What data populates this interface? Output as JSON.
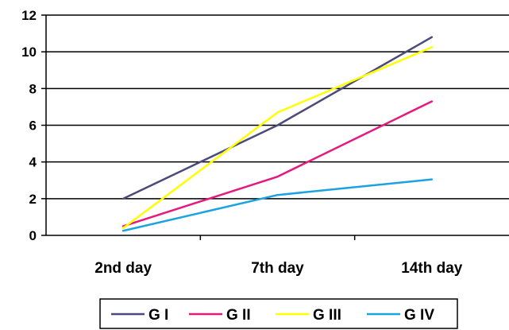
{
  "chart_data": {
    "type": "line",
    "categories": [
      "2nd day",
      "7th day",
      "14th day"
    ],
    "ylim": [
      0,
      12
    ],
    "yticks": [
      0,
      2,
      4,
      6,
      8,
      10,
      12
    ],
    "grid": true,
    "legend_position": "bottom",
    "series": [
      {
        "name": "G I",
        "color": "#4b4a7a",
        "values": [
          2.0,
          6.0,
          10.8
        ]
      },
      {
        "name": "G II",
        "color": "#e6197f",
        "values": [
          0.5,
          3.2,
          7.3
        ]
      },
      {
        "name": "G III",
        "color": "#ffff00",
        "values": [
          0.4,
          6.7,
          10.25
        ]
      },
      {
        "name": "G IV",
        "color": "#1aa3e0",
        "values": [
          0.25,
          2.2,
          3.05
        ]
      }
    ]
  }
}
